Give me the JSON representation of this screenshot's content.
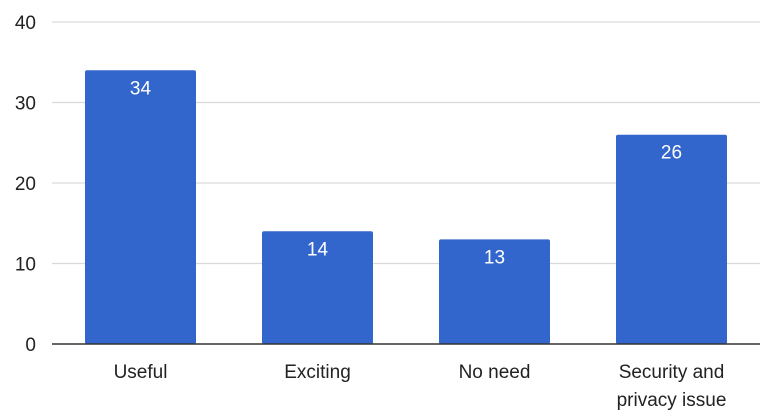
{
  "chart_data": {
    "type": "bar",
    "categories": [
      [
        "Useful"
      ],
      [
        "Exciting"
      ],
      [
        "No need"
      ],
      [
        "Security and",
        "privacy issue"
      ]
    ],
    "values": [
      34,
      14,
      13,
      26
    ],
    "ylim": [
      0,
      40
    ],
    "yticks": [
      0,
      10,
      20,
      30,
      40
    ],
    "grid": true,
    "legend": "none",
    "colors": {
      "bar": "#3366cc",
      "grid": "#d9d9d9",
      "axis": "#333333"
    }
  }
}
